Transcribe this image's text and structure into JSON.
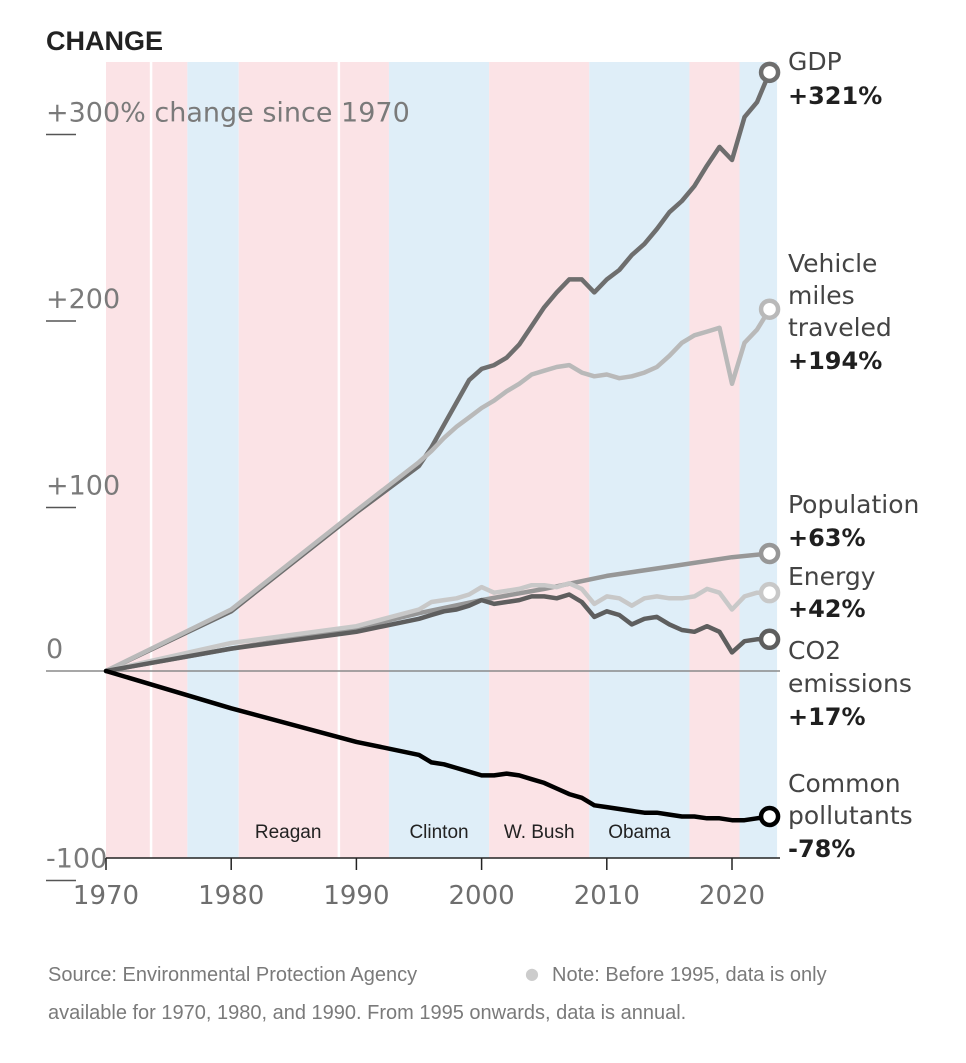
{
  "chart_data": {
    "type": "line",
    "title": "CHANGE",
    "y_axis": {
      "min": -100,
      "max": 300,
      "ticks": [
        {
          "value": 300,
          "label": "+300% change since 1970"
        },
        {
          "value": 200,
          "label": "+200"
        },
        {
          "value": 100,
          "label": "+100"
        },
        {
          "value": 0,
          "label": "0"
        },
        {
          "value": -100,
          "label": "-100"
        }
      ]
    },
    "x_axis": {
      "min": 1970,
      "max": 2023,
      "ticks": [
        {
          "value": 1970,
          "label": "1970"
        },
        {
          "value": 1980,
          "label": "1980"
        },
        {
          "value": 1990,
          "label": "1990"
        },
        {
          "value": 2000,
          "label": "2000"
        },
        {
          "value": 2010,
          "label": "2010"
        },
        {
          "value": 2020,
          "label": "2020"
        }
      ]
    },
    "presidencies": [
      {
        "start": 1970,
        "end": 1973.5,
        "party": "R",
        "label": ""
      },
      {
        "start": 1973.7,
        "end": 1976.5,
        "party": "R",
        "label": ""
      },
      {
        "start": 1976.5,
        "end": 1980.6,
        "party": "D",
        "label": ""
      },
      {
        "start": 1980.6,
        "end": 1988.5,
        "party": "R",
        "label": "Reagan"
      },
      {
        "start": 1988.7,
        "end": 1992.6,
        "party": "R",
        "label": ""
      },
      {
        "start": 1992.6,
        "end": 2000.6,
        "party": "D",
        "label": "Clinton"
      },
      {
        "start": 2000.6,
        "end": 2008.6,
        "party": "R",
        "label": "W. Bush"
      },
      {
        "start": 2008.6,
        "end": 2016.6,
        "party": "D",
        "label": "Obama"
      },
      {
        "start": 2016.6,
        "end": 2020.6,
        "party": "R",
        "label": ""
      },
      {
        "start": 2020.6,
        "end": 2023.6,
        "party": "D",
        "label": ""
      }
    ],
    "party_colors": {
      "R": "#fbe3e6",
      "D": "#dfeef8"
    },
    "series": [
      {
        "name": "GDP",
        "value_label": "+321%",
        "color": "#6e6e6e",
        "marker_fill": "#ffffff",
        "points": [
          [
            1970,
            0
          ],
          [
            1980,
            32
          ],
          [
            1990,
            85
          ],
          [
            1995,
            110
          ],
          [
            1996,
            120
          ],
          [
            1997,
            132
          ],
          [
            1998,
            144
          ],
          [
            1999,
            156
          ],
          [
            2000,
            162
          ],
          [
            2001,
            164
          ],
          [
            2002,
            168
          ],
          [
            2003,
            175
          ],
          [
            2004,
            185
          ],
          [
            2005,
            195
          ],
          [
            2006,
            203
          ],
          [
            2007,
            210
          ],
          [
            2008,
            210
          ],
          [
            2009,
            203
          ],
          [
            2010,
            210
          ],
          [
            2011,
            215
          ],
          [
            2012,
            223
          ],
          [
            2013,
            229
          ],
          [
            2014,
            237
          ],
          [
            2015,
            246
          ],
          [
            2016,
            252
          ],
          [
            2017,
            260
          ],
          [
            2018,
            271
          ],
          [
            2019,
            281
          ],
          [
            2020,
            274
          ],
          [
            2021,
            297
          ],
          [
            2022,
            305
          ],
          [
            2023,
            321
          ]
        ]
      },
      {
        "name": "Vehicle miles traveled",
        "value_label": "+194%",
        "color": "#b9b9b9",
        "marker_fill": "#ffffff",
        "points": [
          [
            1970,
            0
          ],
          [
            1980,
            33
          ],
          [
            1990,
            86
          ],
          [
            1995,
            112
          ],
          [
            1996,
            118
          ],
          [
            1997,
            125
          ],
          [
            1998,
            131
          ],
          [
            1999,
            136
          ],
          [
            2000,
            141
          ],
          [
            2001,
            145
          ],
          [
            2002,
            150
          ],
          [
            2003,
            154
          ],
          [
            2004,
            159
          ],
          [
            2005,
            161
          ],
          [
            2006,
            163
          ],
          [
            2007,
            164
          ],
          [
            2008,
            160
          ],
          [
            2009,
            158
          ],
          [
            2010,
            159
          ],
          [
            2011,
            157
          ],
          [
            2012,
            158
          ],
          [
            2013,
            160
          ],
          [
            2014,
            163
          ],
          [
            2015,
            169
          ],
          [
            2016,
            176
          ],
          [
            2017,
            180
          ],
          [
            2018,
            182
          ],
          [
            2019,
            184
          ],
          [
            2020,
            154
          ],
          [
            2021,
            176
          ],
          [
            2022,
            183
          ],
          [
            2023,
            194
          ]
        ]
      },
      {
        "name": "Population",
        "value_label": "+63%",
        "color": "#979797",
        "marker_fill": "#ffffff",
        "points": [
          [
            1970,
            0
          ],
          [
            1980,
            12
          ],
          [
            1990,
            23
          ],
          [
            1995,
            31
          ],
          [
            2000,
            38
          ],
          [
            2005,
            44
          ],
          [
            2010,
            51
          ],
          [
            2015,
            56
          ],
          [
            2020,
            61
          ],
          [
            2023,
            63
          ]
        ]
      },
      {
        "name": "Energy",
        "value_label": "+42%",
        "color": "#c8c8c8",
        "marker_fill": "#ffffff",
        "points": [
          [
            1970,
            0
          ],
          [
            1980,
            15
          ],
          [
            1990,
            24
          ],
          [
            1995,
            33
          ],
          [
            1996,
            37
          ],
          [
            1997,
            38
          ],
          [
            1998,
            39
          ],
          [
            1999,
            41
          ],
          [
            2000,
            45
          ],
          [
            2001,
            42
          ],
          [
            2002,
            43
          ],
          [
            2003,
            44
          ],
          [
            2004,
            46
          ],
          [
            2005,
            46
          ],
          [
            2006,
            45
          ],
          [
            2007,
            47
          ],
          [
            2008,
            44
          ],
          [
            2009,
            36
          ],
          [
            2010,
            40
          ],
          [
            2011,
            39
          ],
          [
            2012,
            35
          ],
          [
            2013,
            39
          ],
          [
            2014,
            40
          ],
          [
            2015,
            39
          ],
          [
            2016,
            39
          ],
          [
            2017,
            40
          ],
          [
            2018,
            44
          ],
          [
            2019,
            42
          ],
          [
            2020,
            33
          ],
          [
            2021,
            40
          ],
          [
            2022,
            42
          ],
          [
            2023,
            42
          ]
        ]
      },
      {
        "name": "CO2 emissions",
        "value_label": "+17%",
        "color": "#5e5e5e",
        "marker_fill": "#ffffff",
        "points": [
          [
            1970,
            0
          ],
          [
            1980,
            12
          ],
          [
            1990,
            21
          ],
          [
            1995,
            28
          ],
          [
            1996,
            30
          ],
          [
            1997,
            32
          ],
          [
            1998,
            33
          ],
          [
            1999,
            35
          ],
          [
            2000,
            38
          ],
          [
            2001,
            36
          ],
          [
            2002,
            37
          ],
          [
            2003,
            38
          ],
          [
            2004,
            40
          ],
          [
            2005,
            40
          ],
          [
            2006,
            39
          ],
          [
            2007,
            41
          ],
          [
            2008,
            37
          ],
          [
            2009,
            29
          ],
          [
            2010,
            32
          ],
          [
            2011,
            30
          ],
          [
            2012,
            25
          ],
          [
            2013,
            28
          ],
          [
            2014,
            29
          ],
          [
            2015,
            25
          ],
          [
            2016,
            22
          ],
          [
            2017,
            21
          ],
          [
            2018,
            24
          ],
          [
            2019,
            21
          ],
          [
            2020,
            10
          ],
          [
            2021,
            16
          ],
          [
            2022,
            17
          ],
          [
            2023,
            17
          ]
        ]
      },
      {
        "name": "Common pollutants",
        "value_label": "-78%",
        "color": "#000000",
        "marker_fill": "#ffffff",
        "points": [
          [
            1970,
            0
          ],
          [
            1980,
            -20
          ],
          [
            1990,
            -38
          ],
          [
            1995,
            -45
          ],
          [
            1996,
            -49
          ],
          [
            1997,
            -50
          ],
          [
            1998,
            -52
          ],
          [
            1999,
            -54
          ],
          [
            2000,
            -56
          ],
          [
            2001,
            -56
          ],
          [
            2002,
            -55
          ],
          [
            2003,
            -56
          ],
          [
            2004,
            -58
          ],
          [
            2005,
            -60
          ],
          [
            2006,
            -63
          ],
          [
            2007,
            -66
          ],
          [
            2008,
            -68
          ],
          [
            2009,
            -72
          ],
          [
            2010,
            -73
          ],
          [
            2011,
            -74
          ],
          [
            2012,
            -75
          ],
          [
            2013,
            -76
          ],
          [
            2014,
            -76
          ],
          [
            2015,
            -77
          ],
          [
            2016,
            -78
          ],
          [
            2017,
            -78
          ],
          [
            2018,
            -79
          ],
          [
            2019,
            -79
          ],
          [
            2020,
            -80
          ],
          [
            2021,
            -80
          ],
          [
            2022,
            -79
          ],
          [
            2023,
            -78
          ]
        ]
      }
    ],
    "source": "Source: Environmental Protection Agency",
    "note": "Note: Before 1995, data is only",
    "note_line2": "available for 1970, 1980, and 1990. From 1995 onwards, data is annual."
  },
  "labels": {
    "title": "CHANGE",
    "series_text": {
      "gdp": [
        "GDP"
      ],
      "vmt": [
        "Vehicle",
        "miles",
        "traveled"
      ],
      "population": [
        "Population"
      ],
      "energy": [
        "Energy"
      ],
      "co2": [
        "CO2",
        "emissions"
      ],
      "pollutants": [
        "Common",
        "pollutants"
      ]
    }
  }
}
